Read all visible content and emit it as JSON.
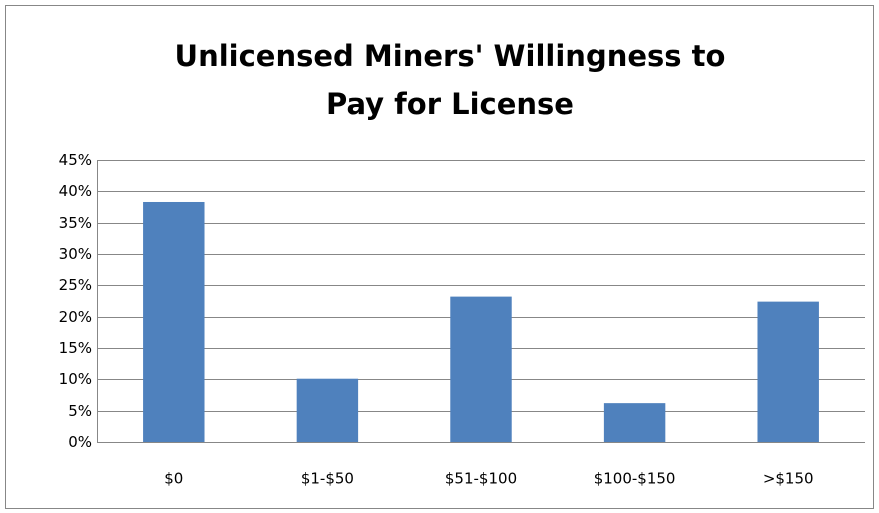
{
  "chart_data": {
    "type": "bar",
    "title": [
      "Unlicensed Miners' Willingness to",
      "Pay for License"
    ],
    "categories": [
      "$0",
      "$1-$50",
      "$51-$100",
      "$100-$150",
      ">$150"
    ],
    "values": [
      38.3,
      10.1,
      23.2,
      6.2,
      22.4
    ],
    "color": "#4f81bd",
    "ylim": [
      0,
      45
    ],
    "yticks": [
      {
        "value": 0,
        "label": "0%"
      },
      {
        "value": 5,
        "label": "5%"
      },
      {
        "value": 10,
        "label": "10%"
      },
      {
        "value": 15,
        "label": "15%"
      },
      {
        "value": 20,
        "label": "20%"
      },
      {
        "value": 25,
        "label": "25%"
      },
      {
        "value": 30,
        "label": "30%"
      },
      {
        "value": 35,
        "label": "35%"
      },
      {
        "value": 40,
        "label": "40%"
      },
      {
        "value": 45,
        "label": "45%"
      }
    ],
    "grid": true
  }
}
